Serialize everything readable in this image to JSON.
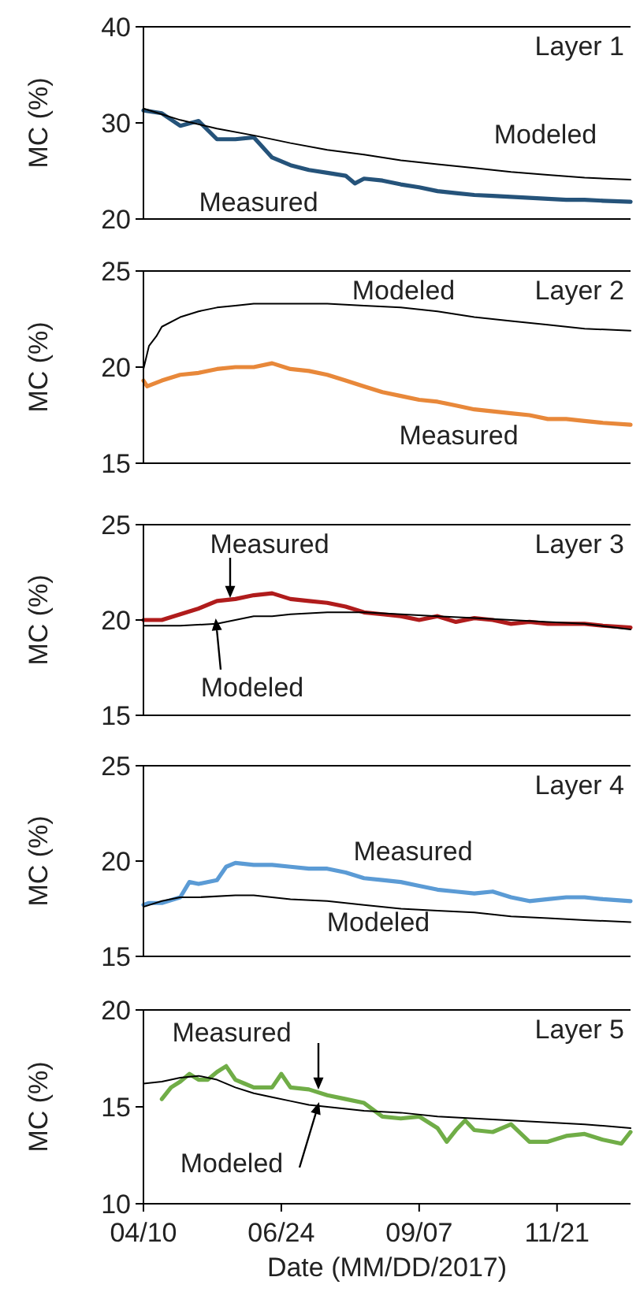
{
  "chart_data": [
    {
      "type": "line",
      "title": "Layer 1",
      "ylabel": "MC (%)",
      "xlim": [
        "2017-04-10",
        "2017-12-31"
      ],
      "ylim": [
        20,
        40
      ],
      "yticks": [
        20,
        30,
        40
      ],
      "tick_labels": "y",
      "annotations": [
        "Measured",
        "Modeled"
      ],
      "series": [
        {
          "color": "#25537a",
          "x": [
            "2017-04-10",
            "2017-04-20",
            "2017-04-30",
            "2017-05-10",
            "2017-05-20",
            "2017-05-30",
            "2017-06-09",
            "2017-06-19",
            "2017-06-29",
            "2017-07-09",
            "2017-07-19",
            "2017-07-29",
            "2017-08-03",
            "2017-08-08",
            "2017-08-18",
            "2017-08-28",
            "2017-09-07",
            "2017-09-17",
            "2017-09-27",
            "2017-10-07",
            "2017-10-17",
            "2017-10-27",
            "2017-11-06",
            "2017-11-16",
            "2017-11-26",
            "2017-12-06",
            "2017-12-16",
            "2017-12-31"
          ],
          "values": [
            31.3,
            31.0,
            29.7,
            30.2,
            28.3,
            28.3,
            28.5,
            26.4,
            25.6,
            25.1,
            24.8,
            24.5,
            23.7,
            24.2,
            24.0,
            23.6,
            23.3,
            22.9,
            22.7,
            22.5,
            22.4,
            22.3,
            22.2,
            22.1,
            22.0,
            22.0,
            21.9,
            21.8
          ]
        },
        {
          "color": "#000000",
          "x": [
            "2017-04-10",
            "2017-04-30",
            "2017-05-20",
            "2017-06-09",
            "2017-06-29",
            "2017-07-19",
            "2017-08-08",
            "2017-08-28",
            "2017-09-17",
            "2017-10-07",
            "2017-10-27",
            "2017-11-16",
            "2017-12-06",
            "2017-12-31"
          ],
          "values": [
            31.5,
            30.3,
            29.4,
            28.7,
            27.9,
            27.2,
            26.7,
            26.1,
            25.7,
            25.3,
            24.9,
            24.6,
            24.3,
            24.1
          ]
        }
      ]
    },
    {
      "type": "line",
      "title": "Layer 2",
      "ylabel": "MC (%)",
      "xlim": [
        "2017-04-10",
        "2017-12-31"
      ],
      "ylim": [
        15,
        25
      ],
      "yticks": [
        15,
        20,
        25
      ],
      "tick_labels": "y",
      "annotations": [
        "Modeled",
        "Measured"
      ],
      "series": [
        {
          "color": "#000000",
          "x": [
            "2017-04-10",
            "2017-04-13",
            "2017-04-17",
            "2017-04-20",
            "2017-04-30",
            "2017-05-10",
            "2017-05-20",
            "2017-05-30",
            "2017-06-09",
            "2017-06-29",
            "2017-07-19",
            "2017-08-08",
            "2017-08-28",
            "2017-09-17",
            "2017-10-07",
            "2017-10-27",
            "2017-11-16",
            "2017-12-06",
            "2017-12-31"
          ],
          "values": [
            19.9,
            21.1,
            21.6,
            22.1,
            22.6,
            22.9,
            23.1,
            23.2,
            23.3,
            23.3,
            23.3,
            23.2,
            23.1,
            22.9,
            22.6,
            22.4,
            22.2,
            22.0,
            21.9
          ]
        },
        {
          "color": "#e8883a",
          "x": [
            "2017-04-10",
            "2017-04-12",
            "2017-04-20",
            "2017-04-30",
            "2017-05-10",
            "2017-05-20",
            "2017-05-30",
            "2017-06-09",
            "2017-06-19",
            "2017-06-29",
            "2017-07-09",
            "2017-07-19",
            "2017-07-29",
            "2017-08-08",
            "2017-08-18",
            "2017-08-28",
            "2017-09-07",
            "2017-09-17",
            "2017-09-27",
            "2017-10-07",
            "2017-10-17",
            "2017-10-27",
            "2017-11-06",
            "2017-11-16",
            "2017-11-26",
            "2017-12-06",
            "2017-12-16",
            "2017-12-31"
          ],
          "values": [
            19.3,
            19.0,
            19.3,
            19.6,
            19.7,
            19.9,
            20.0,
            20.0,
            20.2,
            19.9,
            19.8,
            19.6,
            19.3,
            19.0,
            18.7,
            18.5,
            18.3,
            18.2,
            18.0,
            17.8,
            17.7,
            17.6,
            17.5,
            17.3,
            17.3,
            17.2,
            17.1,
            17.0
          ]
        }
      ]
    },
    {
      "type": "line",
      "title": "Layer 3",
      "ylabel": "MC (%)",
      "xlim": [
        "2017-04-10",
        "2017-12-31"
      ],
      "ylim": [
        15,
        25
      ],
      "yticks": [
        15,
        20,
        25
      ],
      "tick_labels": "y",
      "annotations": [
        "Measured",
        "Modeled"
      ],
      "series": [
        {
          "color": "#b01c1c",
          "x": [
            "2017-04-10",
            "2017-04-20",
            "2017-04-30",
            "2017-05-10",
            "2017-05-20",
            "2017-05-30",
            "2017-06-09",
            "2017-06-19",
            "2017-06-29",
            "2017-07-09",
            "2017-07-19",
            "2017-07-29",
            "2017-08-08",
            "2017-08-18",
            "2017-08-28",
            "2017-09-07",
            "2017-09-17",
            "2017-09-27",
            "2017-10-07",
            "2017-10-17",
            "2017-10-27",
            "2017-11-06",
            "2017-11-16",
            "2017-11-26",
            "2017-12-06",
            "2017-12-16",
            "2017-12-31"
          ],
          "values": [
            20.0,
            20.0,
            20.3,
            20.6,
            21.0,
            21.1,
            21.3,
            21.4,
            21.1,
            21.0,
            20.9,
            20.7,
            20.4,
            20.3,
            20.2,
            20.0,
            20.2,
            19.9,
            20.1,
            20.0,
            19.8,
            19.9,
            19.8,
            19.8,
            19.8,
            19.7,
            19.6
          ]
        },
        {
          "color": "#000000",
          "x": [
            "2017-04-10",
            "2017-04-30",
            "2017-05-20",
            "2017-05-30",
            "2017-06-09",
            "2017-06-19",
            "2017-06-29",
            "2017-07-19",
            "2017-08-08",
            "2017-08-28",
            "2017-09-17",
            "2017-10-07",
            "2017-10-27",
            "2017-11-16",
            "2017-12-06",
            "2017-12-31"
          ],
          "values": [
            19.7,
            19.7,
            19.8,
            20.0,
            20.2,
            20.2,
            20.3,
            20.4,
            20.4,
            20.3,
            20.2,
            20.1,
            20.0,
            19.9,
            19.8,
            19.5
          ]
        }
      ]
    },
    {
      "type": "line",
      "title": "Layer 4",
      "ylabel": "MC (%)",
      "xlim": [
        "2017-04-10",
        "2017-12-31"
      ],
      "ylim": [
        15,
        25
      ],
      "yticks": [
        15,
        20,
        25
      ],
      "tick_labels": "y",
      "annotations": [
        "Measured",
        "Modeled"
      ],
      "series": [
        {
          "color": "#5b9bd5",
          "x": [
            "2017-04-10",
            "2017-04-13",
            "2017-04-20",
            "2017-04-30",
            "2017-05-05",
            "2017-05-10",
            "2017-05-20",
            "2017-05-25",
            "2017-05-30",
            "2017-06-09",
            "2017-06-19",
            "2017-06-29",
            "2017-07-09",
            "2017-07-19",
            "2017-07-29",
            "2017-08-08",
            "2017-08-18",
            "2017-08-28",
            "2017-09-07",
            "2017-09-17",
            "2017-09-27",
            "2017-10-07",
            "2017-10-17",
            "2017-10-27",
            "2017-11-06",
            "2017-11-16",
            "2017-11-26",
            "2017-12-06",
            "2017-12-16",
            "2017-12-31"
          ],
          "values": [
            17.7,
            17.8,
            17.8,
            18.1,
            18.9,
            18.8,
            19.0,
            19.7,
            19.9,
            19.8,
            19.8,
            19.7,
            19.6,
            19.6,
            19.4,
            19.1,
            19.0,
            18.9,
            18.7,
            18.5,
            18.4,
            18.3,
            18.4,
            18.1,
            17.9,
            18.0,
            18.1,
            18.1,
            18.0,
            17.9
          ]
        },
        {
          "color": "#000000",
          "x": [
            "2017-04-10",
            "2017-04-20",
            "2017-04-30",
            "2017-05-10",
            "2017-05-30",
            "2017-06-09",
            "2017-06-29",
            "2017-07-19",
            "2017-08-08",
            "2017-08-28",
            "2017-09-17",
            "2017-10-07",
            "2017-10-27",
            "2017-11-16",
            "2017-12-06",
            "2017-12-31"
          ],
          "values": [
            17.6,
            17.9,
            18.1,
            18.1,
            18.2,
            18.2,
            18.0,
            17.9,
            17.7,
            17.5,
            17.4,
            17.3,
            17.1,
            17.0,
            16.9,
            16.8
          ]
        }
      ]
    },
    {
      "type": "line",
      "title": "Layer 5",
      "ylabel": "MC (%)",
      "xlabel": "Date (MM/DD/2017)",
      "xlim": [
        "2017-04-10",
        "2017-12-31"
      ],
      "xticks": [
        {
          "value": "2017-04-10",
          "label": "04/10"
        },
        {
          "value": "2017-06-24",
          "label": "06/24"
        },
        {
          "value": "2017-09-07",
          "label": "09/07"
        },
        {
          "value": "2017-11-21",
          "label": "11/21"
        }
      ],
      "ylim": [
        10,
        20
      ],
      "yticks": [
        10,
        15,
        20
      ],
      "annotations": [
        "Measured",
        "Modeled"
      ],
      "series": [
        {
          "color": "#70ad47",
          "x": [
            "2017-04-20",
            "2017-04-25",
            "2017-04-30",
            "2017-05-05",
            "2017-05-10",
            "2017-05-15",
            "2017-05-20",
            "2017-05-25",
            "2017-05-30",
            "2017-06-04",
            "2017-06-09",
            "2017-06-19",
            "2017-06-24",
            "2017-06-29",
            "2017-07-09",
            "2017-07-19",
            "2017-07-29",
            "2017-08-08",
            "2017-08-18",
            "2017-08-28",
            "2017-09-07",
            "2017-09-17",
            "2017-09-22",
            "2017-09-27",
            "2017-10-02",
            "2017-10-07",
            "2017-10-17",
            "2017-10-27",
            "2017-11-06",
            "2017-11-16",
            "2017-11-26",
            "2017-12-06",
            "2017-12-16",
            "2017-12-26",
            "2017-12-31"
          ],
          "values": [
            15.4,
            16.0,
            16.3,
            16.7,
            16.4,
            16.4,
            16.8,
            17.1,
            16.4,
            16.2,
            16.0,
            16.0,
            16.7,
            16.0,
            15.9,
            15.6,
            15.4,
            15.2,
            14.5,
            14.4,
            14.5,
            13.9,
            13.2,
            13.8,
            14.3,
            13.8,
            13.7,
            14.1,
            13.2,
            13.2,
            13.5,
            13.6,
            13.3,
            13.1,
            13.7
          ]
        },
        {
          "color": "#000000",
          "x": [
            "2017-04-10",
            "2017-04-20",
            "2017-04-30",
            "2017-05-10",
            "2017-05-20",
            "2017-05-30",
            "2017-06-09",
            "2017-06-19",
            "2017-06-29",
            "2017-07-09",
            "2017-07-19",
            "2017-08-08",
            "2017-08-28",
            "2017-09-17",
            "2017-10-07",
            "2017-10-27",
            "2017-11-16",
            "2017-12-06",
            "2017-12-31"
          ],
          "values": [
            16.2,
            16.3,
            16.5,
            16.6,
            16.4,
            16.0,
            15.7,
            15.5,
            15.3,
            15.1,
            15.0,
            14.8,
            14.7,
            14.5,
            14.4,
            14.3,
            14.2,
            14.1,
            13.9
          ]
        }
      ]
    }
  ]
}
